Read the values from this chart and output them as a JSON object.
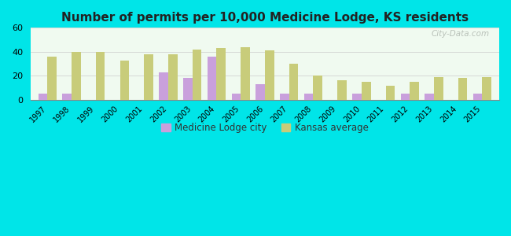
{
  "title": "Number of permits per 10,000 Medicine Lodge, KS residents",
  "years": [
    1997,
    1998,
    1999,
    2000,
    2001,
    2002,
    2003,
    2004,
    2005,
    2006,
    2007,
    2008,
    2009,
    2010,
    2011,
    2012,
    2013,
    2014,
    2015
  ],
  "city_values": [
    5,
    5,
    0,
    0,
    0,
    23,
    18,
    36,
    5,
    13,
    5,
    5,
    0,
    5,
    0,
    5,
    5,
    0,
    5
  ],
  "kansas_values": [
    36,
    40,
    40,
    33,
    38,
    38,
    42,
    43,
    44,
    41,
    30,
    20,
    16,
    15,
    12,
    15,
    19,
    18,
    19
  ],
  "city_color": "#c9a0dc",
  "kansas_color": "#c8cc7a",
  "background_outer": "#00e5e8",
  "background_inner_top": "#f0faf0",
  "background_inner": "#d8edd8",
  "ylim": [
    0,
    60
  ],
  "yticks": [
    0,
    20,
    40,
    60
  ],
  "bar_width": 0.38,
  "city_label": "Medicine Lodge city",
  "kansas_label": "Kansas average",
  "watermark": "City-Data.com"
}
